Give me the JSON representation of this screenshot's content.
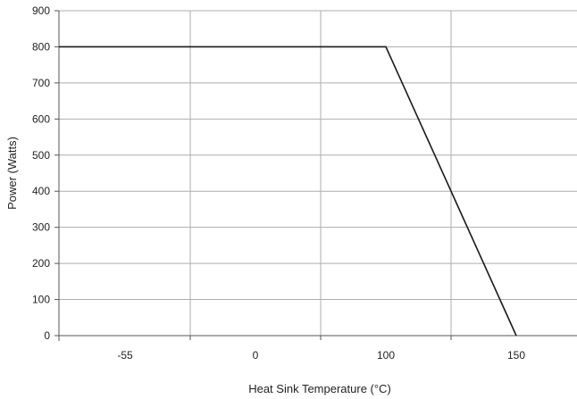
{
  "chart_data": {
    "type": "line",
    "xlabel": "Heat Sink Temperature (°C)",
    "ylabel": "Power (Watts)",
    "x_tick_labels": [
      "-55",
      "0",
      "100",
      "150"
    ],
    "y_ticks": [
      0,
      100,
      200,
      300,
      400,
      500,
      600,
      700,
      800,
      900
    ],
    "ylim": [
      0,
      900
    ],
    "grid": true,
    "series": [
      {
        "x_ticks": [
          0,
          0.75,
          1.75,
          3,
          3.25,
          3.75
        ],
        "points": [
          {
            "x": "start",
            "y": 800
          },
          {
            "x": "100",
            "y": 800
          },
          {
            "x": "150",
            "y": 0
          }
        ]
      }
    ]
  }
}
